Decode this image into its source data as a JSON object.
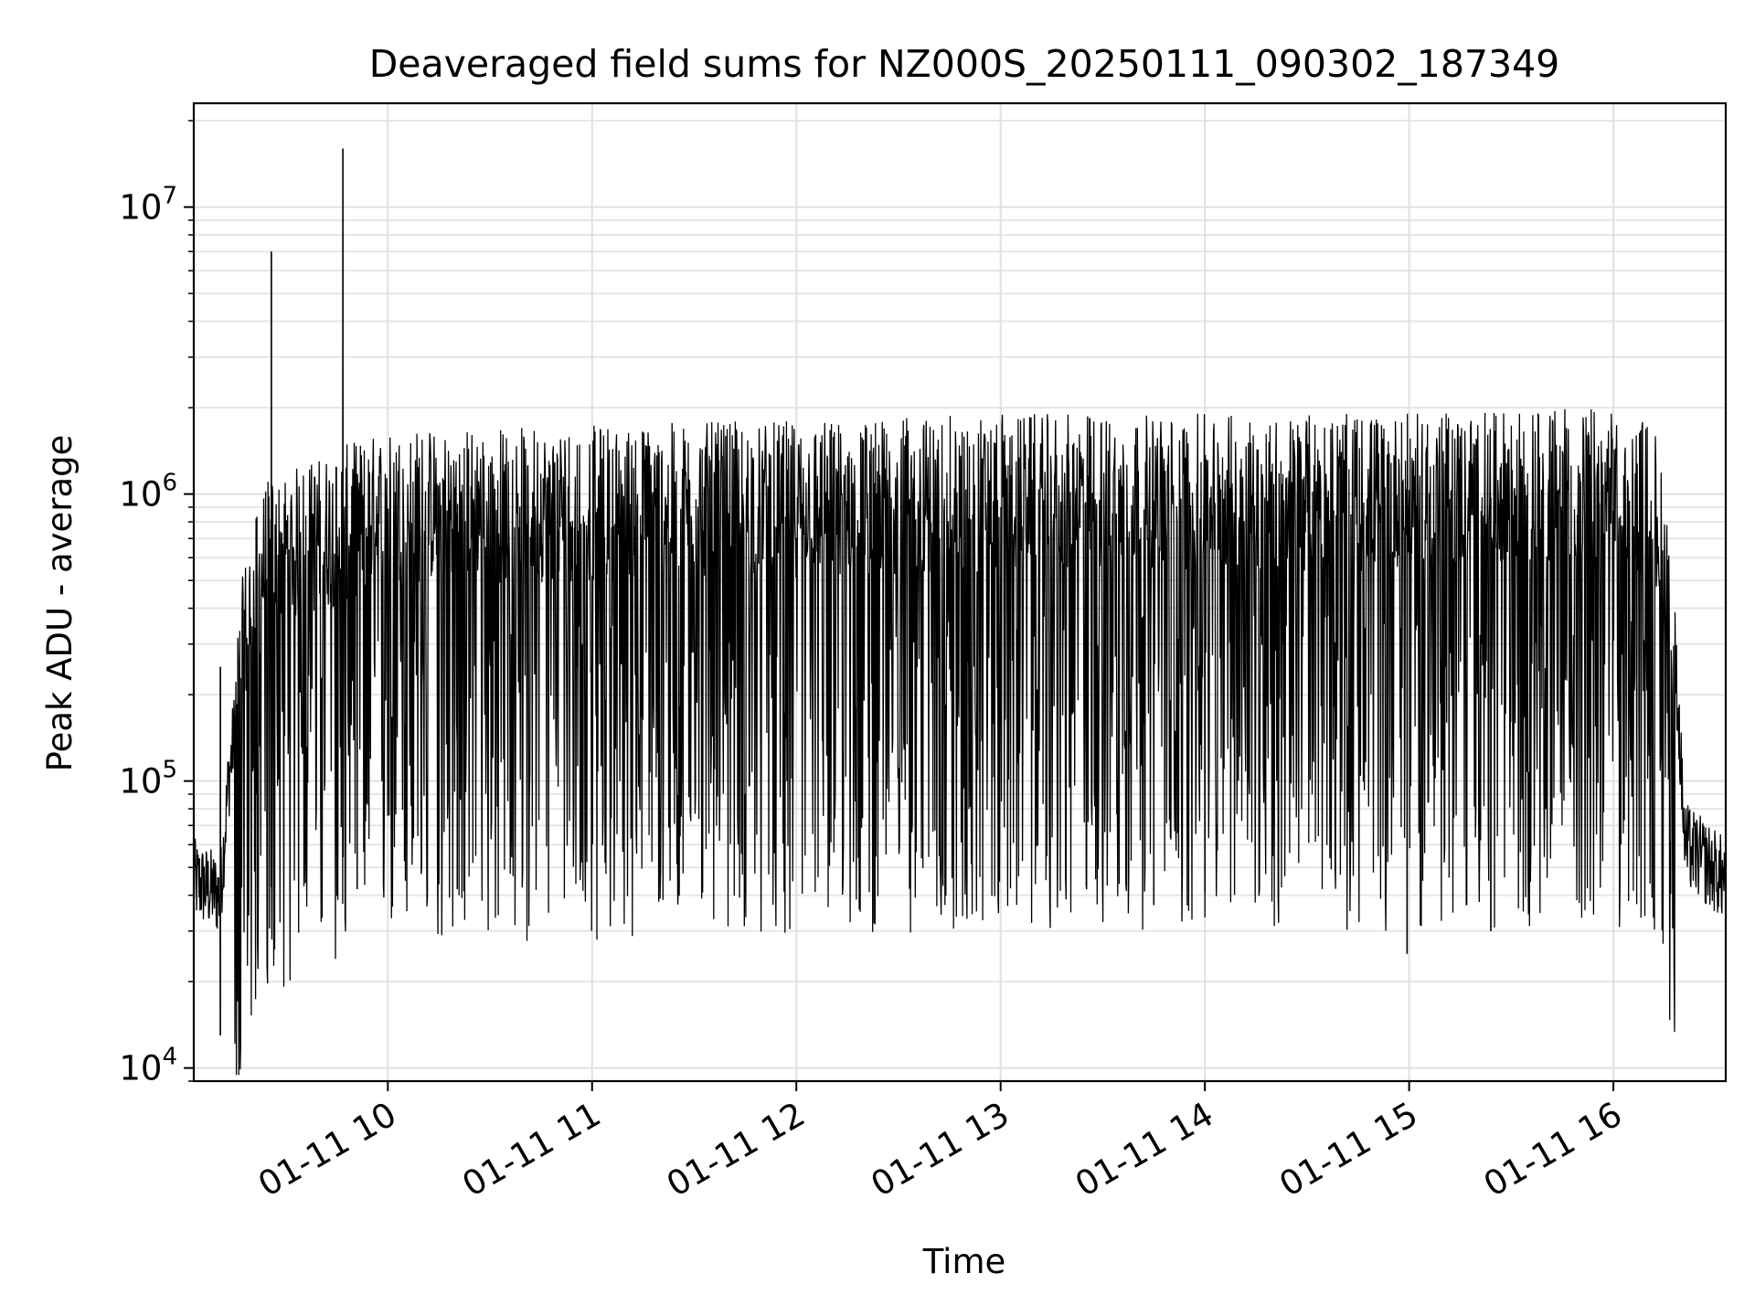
{
  "chart_data": {
    "type": "line",
    "title": "Deaveraged field sums for NZ000S_20250111_090302_187349",
    "xlabel": "Time",
    "ylabel": "Peak ADU - average",
    "yscale": "log",
    "ylim": [
      9000,
      23000000
    ],
    "xlim": [
      9.05,
      16.55
    ],
    "grid": true,
    "x_ticks": [
      {
        "value": 10,
        "label": "01-11 10"
      },
      {
        "value": 11,
        "label": "01-11 11"
      },
      {
        "value": 12,
        "label": "01-11 12"
      },
      {
        "value": 13,
        "label": "01-11 13"
      },
      {
        "value": 14,
        "label": "01-11 14"
      },
      {
        "value": 15,
        "label": "01-11 15"
      },
      {
        "value": 16,
        "label": "01-11 16"
      }
    ],
    "y_ticks": [
      {
        "value": 10000,
        "base": "10",
        "exp": "4"
      },
      {
        "value": 100000,
        "base": "10",
        "exp": "5"
      },
      {
        "value": 1000000,
        "base": "10",
        "exp": "6"
      },
      {
        "value": 10000000,
        "base": "10",
        "exp": "7"
      }
    ],
    "series": [
      {
        "name": "Peak ADU - average",
        "color": "#000000",
        "baseline_profile_hours": [
          9.05,
          9.18,
          9.22,
          9.3,
          9.4,
          9.6,
          10.0,
          12.0,
          13.0,
          15.0,
          15.9,
          16.2,
          16.3,
          16.35,
          16.55
        ],
        "baseline_profile_values": [
          45000,
          40000,
          100000,
          300000,
          550000,
          650000,
          850000,
          900000,
          950000,
          950000,
          1000000,
          900000,
          300000,
          60000,
          45000
        ],
        "spikes": [
          {
            "x": 9.18,
            "y": 13000
          },
          {
            "x": 9.18,
            "y": 250000
          },
          {
            "x": 9.43,
            "y": 7000000
          },
          {
            "x": 9.43,
            "y": 65000
          },
          {
            "x": 9.78,
            "y": 16000000
          },
          {
            "x": 9.85,
            "y": 42000
          },
          {
            "x": 10.34,
            "y": 42000
          },
          {
            "x": 13.75,
            "y": 37000
          },
          {
            "x": 14.0,
            "y": 41000
          },
          {
            "x": 14.99,
            "y": 25000
          },
          {
            "x": 15.4,
            "y": 30000
          },
          {
            "x": 15.88,
            "y": 1600000
          },
          {
            "x": 16.55,
            "y": 26000
          }
        ]
      }
    ]
  }
}
